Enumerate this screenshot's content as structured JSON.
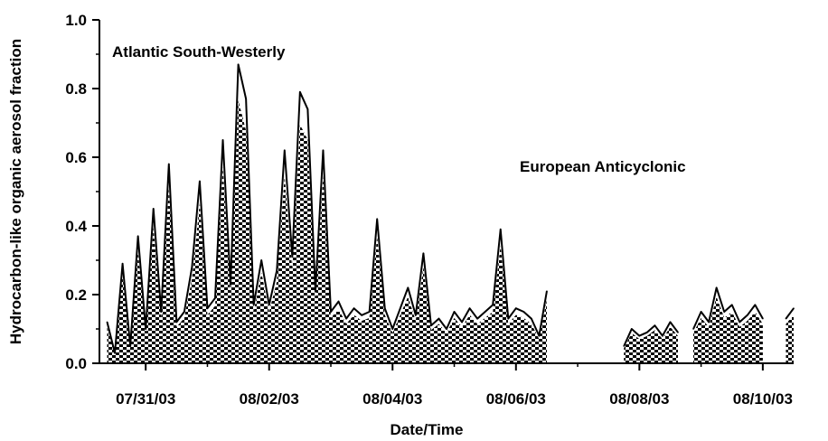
{
  "chart_data": {
    "type": "area",
    "title": "",
    "xlabel": "Date/Time",
    "ylabel": "Hydrocarbon-like organic aerosol fraction",
    "xticks": [
      "07/31/03",
      "08/02/03",
      "08/04/03",
      "08/06/03",
      "08/08/03",
      "08/10/03"
    ],
    "xlim": [
      "07/30/03 06:00",
      "08/10/03 12:00"
    ],
    "yticks": [
      "0.0",
      "0.2",
      "0.4",
      "0.6",
      "0.8",
      "1.0"
    ],
    "ylim": [
      0,
      1.0
    ],
    "grid": false,
    "annotations": [
      "Atlantic South-Westerly",
      "European Anticyclonic"
    ],
    "line_style": "solid",
    "fill_style": "dotted-hatch",
    "segments": [
      {
        "x": [
          "07/30/03 09:00",
          "07/30/03 12:00",
          "07/30/03 15:00",
          "07/30/03 18:00",
          "07/30/03 21:00",
          "07/31/03 00:00",
          "07/31/03 03:00",
          "07/31/03 06:00",
          "07/31/03 09:00",
          "07/31/03 12:00",
          "07/31/03 15:00",
          "07/31/03 18:00",
          "07/31/03 21:00",
          "08/01/03 00:00",
          "08/01/03 03:00",
          "08/01/03 06:00",
          "08/01/03 09:00",
          "08/01/03 12:00",
          "08/01/03 15:00",
          "08/01/03 18:00",
          "08/01/03 21:00",
          "08/02/03 00:00",
          "08/02/03 03:00",
          "08/02/03 06:00",
          "08/02/03 09:00",
          "08/02/03 12:00",
          "08/02/03 15:00",
          "08/02/03 18:00",
          "08/02/03 21:00",
          "08/03/03 00:00",
          "08/03/03 03:00",
          "08/03/03 06:00",
          "08/03/03 09:00",
          "08/03/03 12:00",
          "08/03/03 15:00",
          "08/03/03 18:00",
          "08/03/03 21:00",
          "08/04/03 00:00",
          "08/04/03 03:00",
          "08/04/03 06:00",
          "08/04/03 09:00",
          "08/04/03 12:00",
          "08/04/03 15:00",
          "08/04/03 18:00",
          "08/04/03 21:00",
          "08/05/03 00:00",
          "08/05/03 03:00",
          "08/05/03 06:00",
          "08/05/03 09:00",
          "08/05/03 12:00",
          "08/05/03 15:00",
          "08/05/03 18:00",
          "08/05/03 21:00",
          "08/06/03 00:00",
          "08/06/03 03:00",
          "08/06/03 06:00",
          "08/06/03 09:00",
          "08/06/03 12:00"
        ],
        "y": [
          0.12,
          0.03,
          0.29,
          0.05,
          0.37,
          0.1,
          0.45,
          0.15,
          0.58,
          0.12,
          0.15,
          0.28,
          0.53,
          0.16,
          0.19,
          0.65,
          0.23,
          0.87,
          0.77,
          0.17,
          0.3,
          0.17,
          0.27,
          0.62,
          0.31,
          0.79,
          0.74,
          0.21,
          0.62,
          0.15,
          0.18,
          0.13,
          0.16,
          0.14,
          0.15,
          0.42,
          0.16,
          0.1,
          0.16,
          0.22,
          0.14,
          0.32,
          0.11,
          0.13,
          0.1,
          0.15,
          0.12,
          0.16,
          0.13,
          0.15,
          0.17,
          0.39,
          0.13,
          0.16,
          0.15,
          0.13,
          0.08,
          0.21
        ]
      },
      {
        "x": [
          "08/07/03 18:00",
          "08/07/03 21:00",
          "08/08/03 00:00",
          "08/08/03 03:00",
          "08/08/03 06:00",
          "08/08/03 09:00",
          "08/08/03 12:00",
          "08/08/03 15:00"
        ],
        "y": [
          0.05,
          0.1,
          0.08,
          0.09,
          0.11,
          0.08,
          0.12,
          0.09
        ]
      },
      {
        "x": [
          "08/08/03 21:00",
          "08/09/03 00:00",
          "08/09/03 03:00",
          "08/09/03 06:00",
          "08/09/03 09:00",
          "08/09/03 12:00",
          "08/09/03 15:00",
          "08/09/03 18:00",
          "08/09/03 21:00",
          "08/10/03 00:00"
        ],
        "y": [
          0.1,
          0.15,
          0.12,
          0.22,
          0.15,
          0.17,
          0.12,
          0.14,
          0.17,
          0.13
        ]
      },
      {
        "x": [
          "08/10/03 09:00",
          "08/10/03 12:00"
        ],
        "y": [
          0.13,
          0.16
        ]
      }
    ]
  }
}
